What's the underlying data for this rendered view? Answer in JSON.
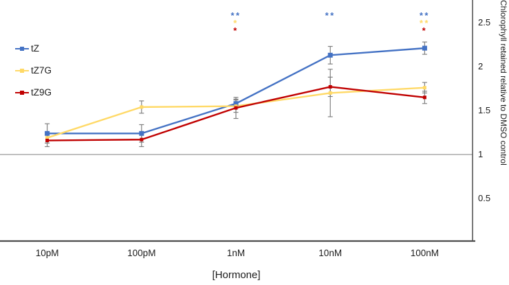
{
  "chart_data": {
    "type": "line",
    "title": "",
    "categories": [
      "10pM",
      "100pM",
      "1nM",
      "10nM",
      "100nM"
    ],
    "xlabel": "[Hormone]",
    "ylabel": "Chlorophyll retained relative to DMSO control",
    "yticks": [
      0.5,
      1,
      1.5,
      2,
      2.5
    ],
    "ylim": [
      0,
      2.76
    ],
    "reference_line_y": 1,
    "grid": "single horizontal reference line at y=1 only",
    "legend_position": "upper left inside plot area",
    "error_bar_color": "#7f7f7f",
    "axis_color": "#4d4d4d",
    "series": [
      {
        "name": "tZ",
        "color": "#4472C4",
        "marker": "square",
        "values": [
          1.24,
          1.24,
          1.58,
          2.13,
          2.21
        ],
        "errors": [
          0.11,
          0.1,
          0.05,
          0.1,
          0.07
        ]
      },
      {
        "name": "tZ7G",
        "color": "#FFD966",
        "marker": "square",
        "values": [
          1.19,
          1.54,
          1.55,
          1.7,
          1.76
        ],
        "errors": [
          0.06,
          0.07,
          0.07,
          0.27,
          0.06
        ]
      },
      {
        "name": "tZ9G",
        "color": "#C00000",
        "marker": "square",
        "values": [
          1.16,
          1.17,
          1.53,
          1.77,
          1.65
        ],
        "errors": [
          0.07,
          0.08,
          0.12,
          0.11,
          0.07
        ]
      }
    ],
    "significance": [
      {
        "category": "1nM",
        "marks": [
          {
            "series": "tZ",
            "symbol": "**"
          },
          {
            "series": "tZ7G",
            "symbol": "*"
          },
          {
            "series": "tZ9G",
            "symbol": "*"
          }
        ]
      },
      {
        "category": "10nM",
        "marks": [
          {
            "series": "tZ",
            "symbol": "**"
          }
        ]
      },
      {
        "category": "100nM",
        "marks": [
          {
            "series": "tZ",
            "symbol": "**"
          },
          {
            "series": "tZ7G",
            "symbol": "**"
          },
          {
            "series": "tZ9G",
            "symbol": "*"
          }
        ]
      }
    ]
  }
}
